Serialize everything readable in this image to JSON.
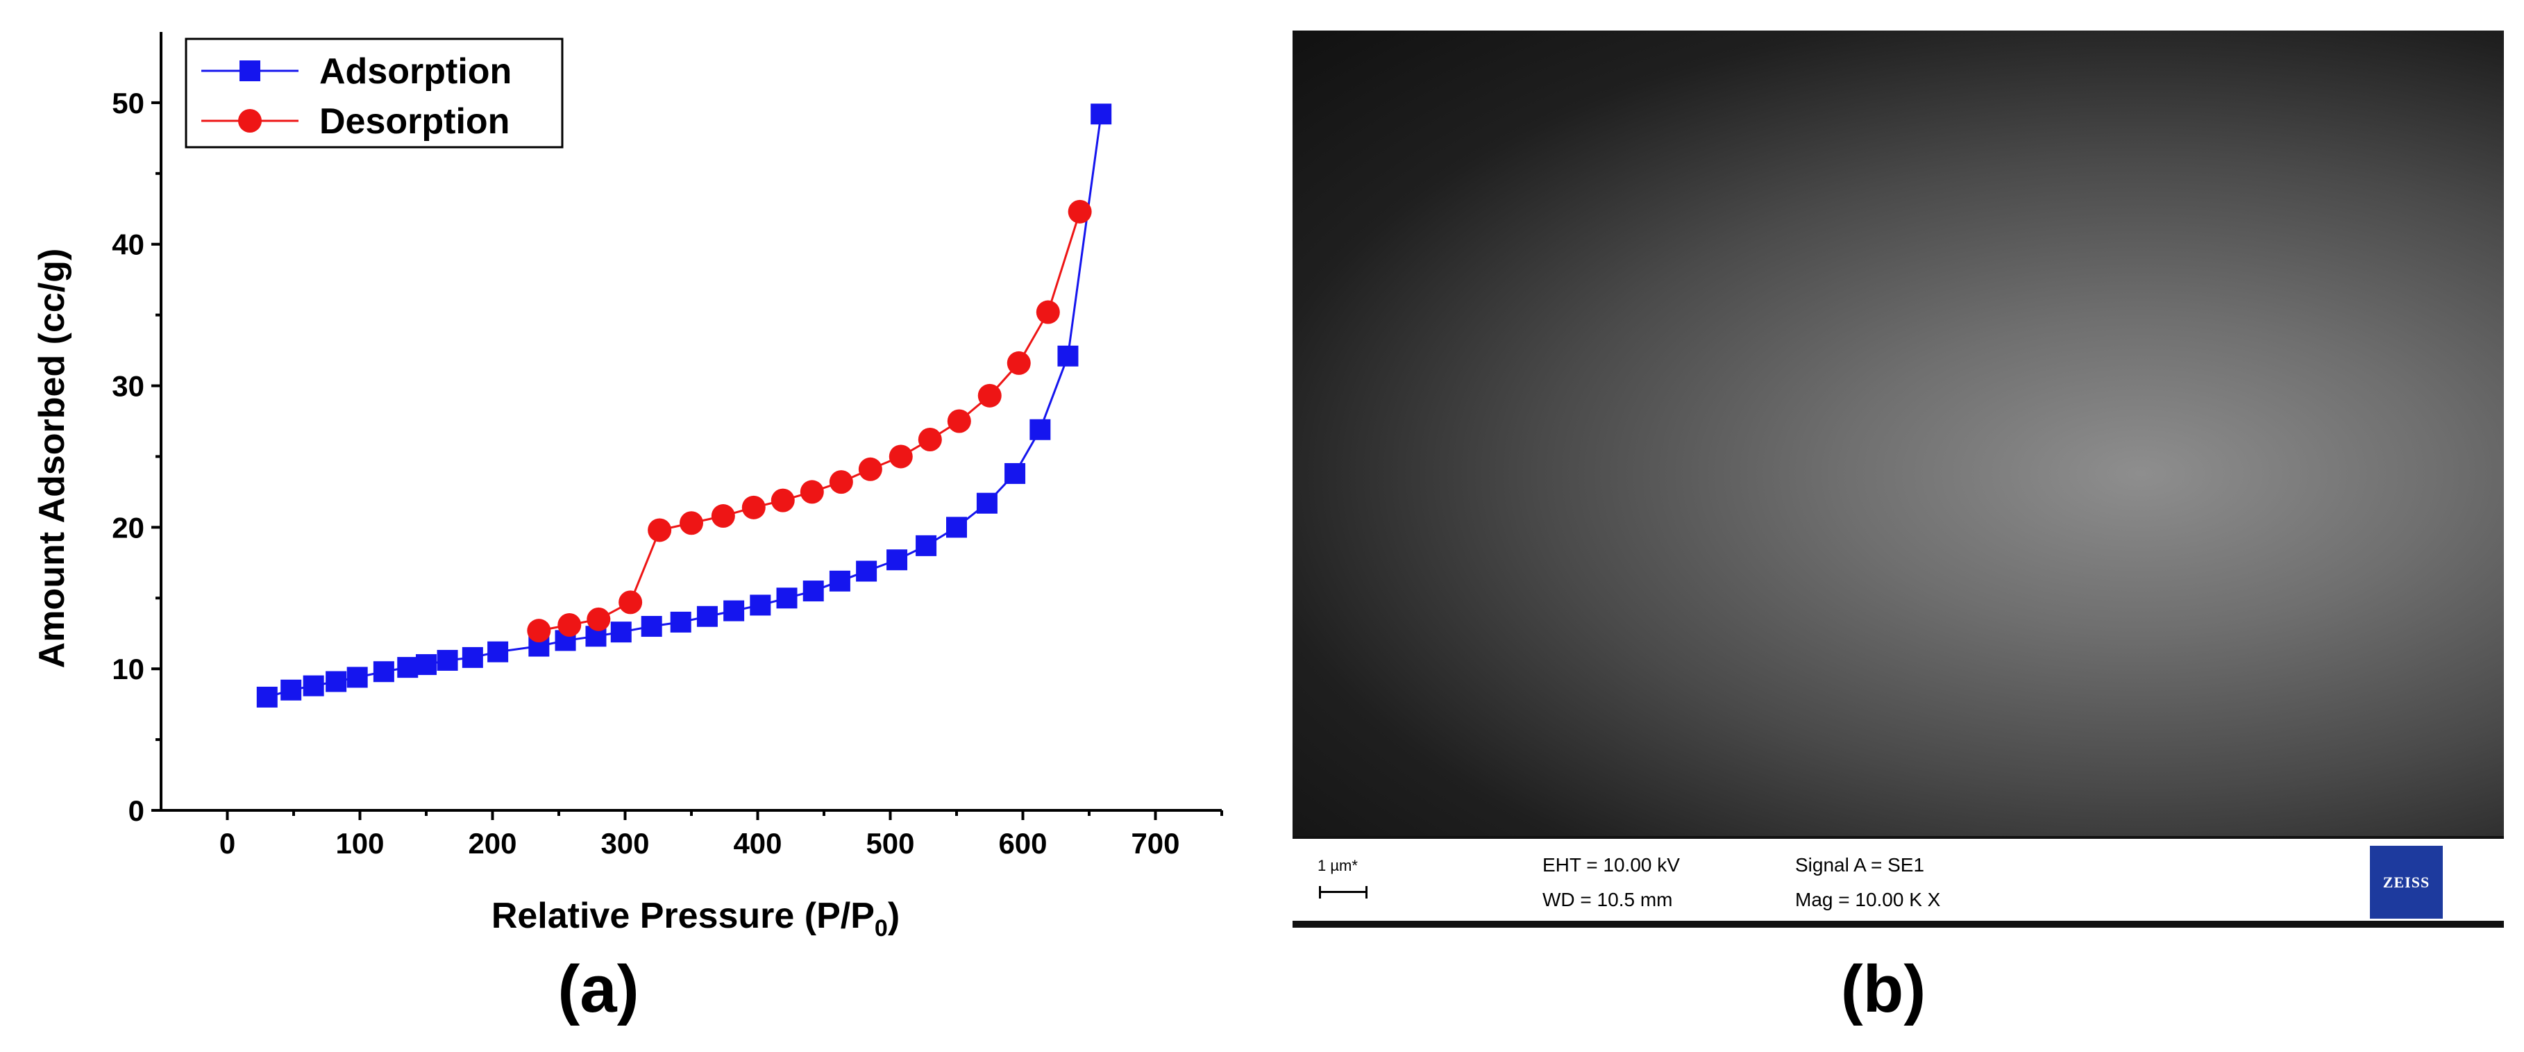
{
  "chart_data": {
    "type": "scatter",
    "title": "",
    "xlabel": "Relative Pressure (P/P",
    "xlabel_sub": "0",
    "xlabel_end": ")",
    "ylabel": "Amount Adsorbed (cc/g)",
    "xlim": [
      -50,
      750
    ],
    "ylim": [
      0,
      55
    ],
    "xticks": [
      0,
      100,
      200,
      300,
      400,
      500,
      600,
      700
    ],
    "yticks": [
      0,
      10,
      20,
      30,
      40,
      50
    ],
    "grid": false,
    "legend_position": "top-left",
    "series": [
      {
        "name": "Adsorption",
        "color": "#1515ee",
        "marker": "square",
        "x": [
          30,
          48,
          65,
          82,
          98,
          118,
          136,
          150,
          166,
          185,
          204,
          235,
          255,
          278,
          297,
          320,
          342,
          362,
          382,
          402,
          422,
          442,
          462,
          482,
          505,
          527,
          550,
          573,
          594,
          613,
          634,
          659
        ],
        "y": [
          8.0,
          8.5,
          8.8,
          9.1,
          9.4,
          9.8,
          10.1,
          10.3,
          10.6,
          10.8,
          11.2,
          11.6,
          12.0,
          12.3,
          12.6,
          13.0,
          13.3,
          13.7,
          14.1,
          14.5,
          15.0,
          15.5,
          16.2,
          16.9,
          17.7,
          18.7,
          20.0,
          21.7,
          23.8,
          26.9,
          32.1,
          49.2
        ]
      },
      {
        "name": "Desorption",
        "color": "#ee1515",
        "marker": "circle",
        "x": [
          235,
          258,
          280,
          304,
          326,
          350,
          374,
          397,
          419,
          441,
          463,
          485,
          508,
          530,
          552,
          575,
          597,
          619,
          643
        ],
        "y": [
          12.7,
          13.1,
          13.5,
          14.7,
          19.8,
          20.3,
          20.8,
          21.4,
          21.9,
          22.5,
          23.2,
          24.1,
          25.0,
          26.2,
          27.5,
          29.3,
          31.6,
          35.2,
          42.3
        ]
      }
    ]
  },
  "panel_labels": {
    "a": "(a)",
    "b": "(b)"
  },
  "sem_info": {
    "scale_label": "1 µm*",
    "eht": "EHT = 10.00 kV",
    "wd": "WD = 10.5 mm",
    "signal": "Signal A = SE1",
    "mag": "Mag =  10.00 K X",
    "logo_text": "ZEISS"
  }
}
